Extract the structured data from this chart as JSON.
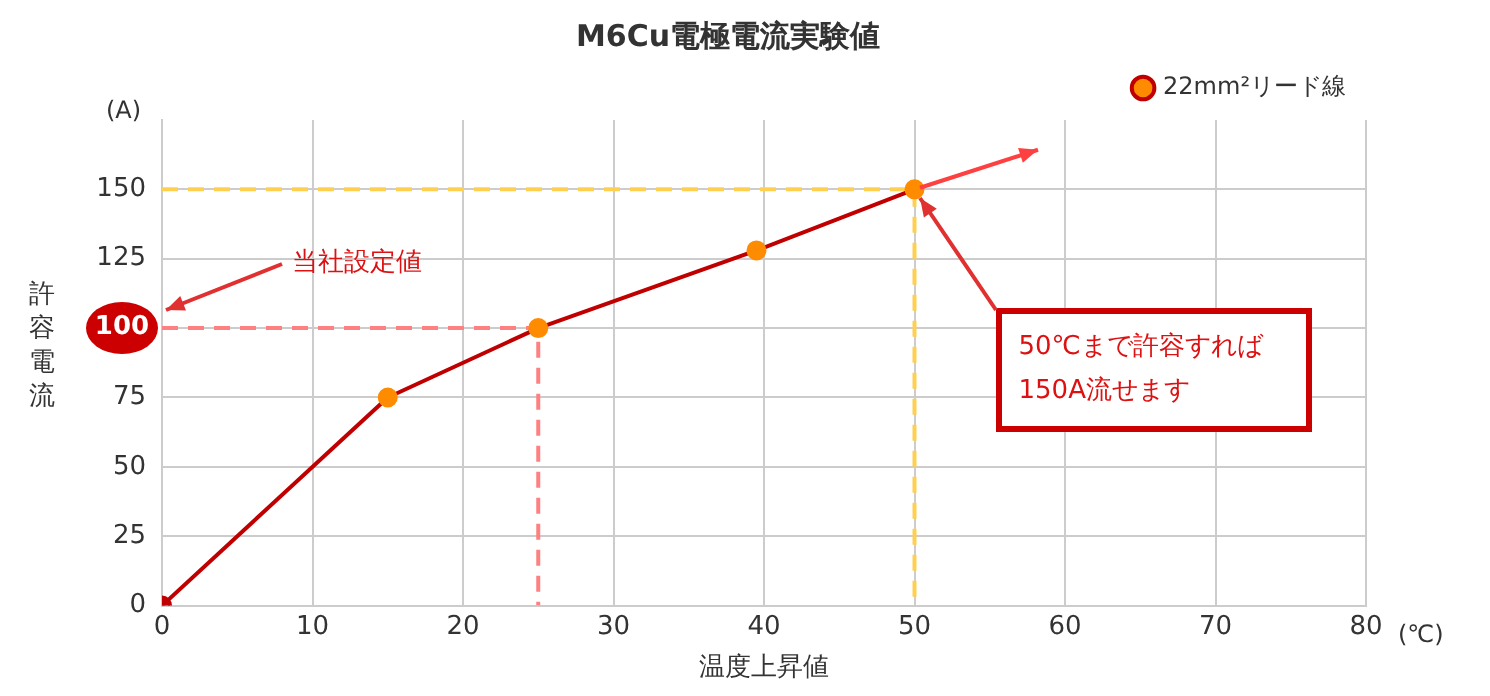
{
  "chart_data": {
    "type": "line",
    "title": "M6Cu電極電流実験値",
    "xlabel": "温度上昇値",
    "ylabel": "許容電流",
    "xlim": [
      0,
      80
    ],
    "xticks": [
      0,
      10,
      20,
      30,
      40,
      50,
      60,
      70,
      80
    ],
    "ylim": [
      0,
      175
    ],
    "yticks": [
      0,
      25,
      50,
      75,
      100,
      125,
      150
    ],
    "grid": true,
    "legend": "top right",
    "marker": "circle",
    "series": [
      {
        "name": "22mm²リード線",
        "color": "#c00000",
        "colors": [
          "#c00000",
          "#ff8c00",
          "#ff8c00",
          "#ff8c00",
          "#ff8c00"
        ],
        "x": [
          0,
          15,
          25,
          39.5,
          50
        ],
        "values": [
          0,
          75,
          100,
          128,
          150
        ]
      },
      {
        "type": "line",
        "color": "#ff8080",
        "line_style": "dashed",
        "marker": "none",
        "x": [
          0,
          25,
          25
        ],
        "values": [
          100,
          100,
          0
        ]
      },
      {
        "type": "line",
        "color": "#ffd050",
        "line_style": "dashed",
        "marker": "none",
        "x": [
          0,
          50,
          50
        ],
        "values": [
          150,
          150,
          0
        ]
      }
    ],
    "annotations": [
      "(A)",
      "(℃)",
      "100",
      "当社設定値",
      {
        "text": "50℃まで許容すれば\n150A流せます",
        "x": 50,
        "y": 150
      }
    ]
  }
}
